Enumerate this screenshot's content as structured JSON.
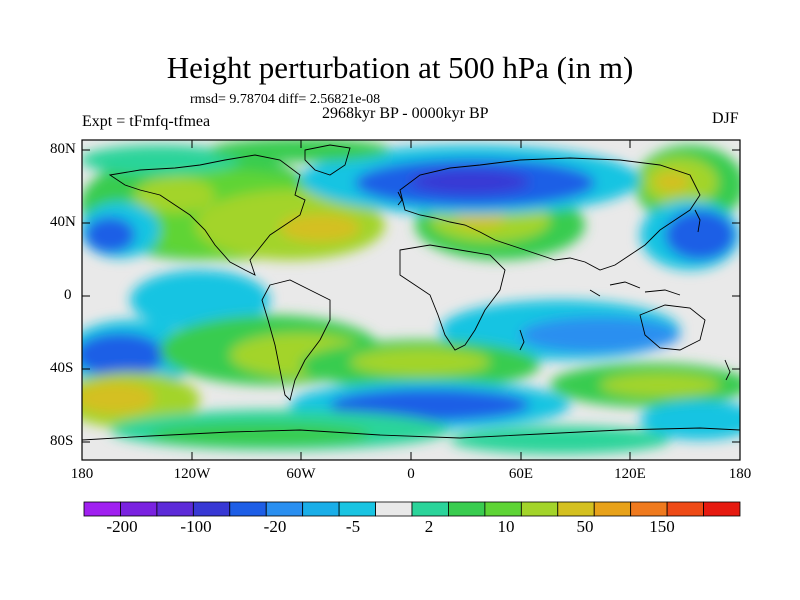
{
  "title": "Height perturbation at 500 hPa (in m)",
  "stats": "rmsd= 9.78704 diff= 2.56821e-08",
  "experiment": "Expt = tFmfq-tfmea",
  "period": "2968kyr BP - 0000kyr BP",
  "season": "DJF",
  "lat_labels": [
    "80N",
    "40N",
    "0",
    "40S",
    "80S"
  ],
  "lon_labels": [
    "180",
    "120W",
    "60W",
    "0",
    "60E",
    "120E",
    "180"
  ],
  "colorbar": {
    "labels": [
      "-200",
      "-100",
      "-20",
      "-5",
      "2",
      "10",
      "50",
      "150"
    ],
    "colors": [
      "#a020f0",
      "#7a22e0",
      "#5d2bd8",
      "#3838d4",
      "#1e5ee6",
      "#2a8ff0",
      "#1aaee8",
      "#19c4e2",
      "#e9e9e9",
      "#2bd49a",
      "#39cc4f",
      "#5ed435",
      "#a3d42a",
      "#d4c020",
      "#e8a21a",
      "#ef7a1e",
      "#ee4a16",
      "#e61a10"
    ]
  },
  "map": {
    "ocean_color": "#e9e9e9",
    "lat_range": [
      -90,
      90
    ],
    "lon_range": [
      -180,
      180
    ]
  }
}
